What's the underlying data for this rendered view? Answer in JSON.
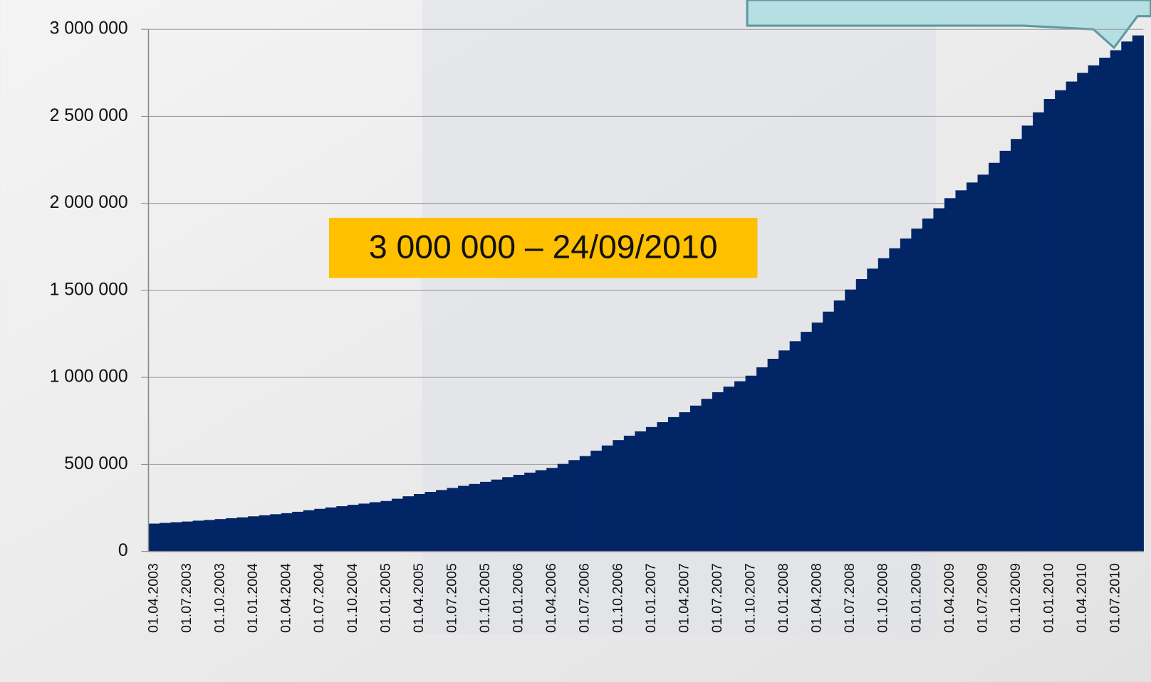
{
  "chart_data": {
    "type": "step-area",
    "annotation": "3 000 000 – 24/09/2010",
    "color": "#022566",
    "categories": [
      "01.04.2003",
      null,
      null,
      "01.07.2003",
      null,
      null,
      "01.10.2003",
      null,
      null,
      "01.01.2004",
      null,
      null,
      "01.04.2004",
      null,
      null,
      "01.07.2004",
      null,
      null,
      "01.10.2004",
      null,
      null,
      "01.01.2005",
      null,
      null,
      "01.04.2005",
      null,
      null,
      "01.07.2005",
      null,
      null,
      "01.10.2005",
      null,
      null,
      "01.01.2006",
      null,
      null,
      "01.04.2006",
      null,
      null,
      "01.07.2006",
      null,
      null,
      "01.10.2006",
      null,
      null,
      "01.01.2007",
      null,
      null,
      "01.04.2007",
      null,
      null,
      "01.07.2007",
      null,
      null,
      "01.10.2007",
      null,
      null,
      "01.01.2008",
      null,
      null,
      "01.04.2008",
      null,
      null,
      "01.07.2008",
      null,
      null,
      "01.10.2008",
      null,
      null,
      "01.01.2009",
      null,
      null,
      "01.04.2009",
      null,
      null,
      "01.07.2009",
      null,
      null,
      "01.10.2009",
      null,
      null,
      "01.01.2010",
      null,
      null,
      "01.04.2010",
      null,
      null,
      "01.07.2010",
      null,
      null
    ],
    "values": [
      160000,
      164000,
      168000,
      172000,
      177000,
      181000,
      186000,
      191000,
      196000,
      202000,
      208000,
      214000,
      220000,
      228000,
      237000,
      245000,
      253000,
      260000,
      268000,
      275000,
      283000,
      290000,
      303000,
      317000,
      330000,
      342000,
      353000,
      365000,
      377000,
      388000,
      400000,
      413000,
      427000,
      440000,
      453000,
      467000,
      480000,
      503000,
      525000,
      548000,
      579000,
      609000,
      640000,
      665000,
      690000,
      715000,
      743000,
      772000,
      800000,
      838000,
      877000,
      915000,
      947000,
      978000,
      1010000,
      1058000,
      1107000,
      1155000,
      1208000,
      1262000,
      1315000,
      1378000,
      1442000,
      1505000,
      1565000,
      1625000,
      1685000,
      1742000,
      1798000,
      1855000,
      1913000,
      1972000,
      2030000,
      2075000,
      2120000,
      2165000,
      2233000,
      2302000,
      2370000,
      2447000,
      2523000,
      2600000,
      2650000,
      2700000,
      2750000,
      2793000,
      2837000,
      2880000,
      2930000,
      2965000
    ],
    "ylim": [
      0,
      3000000
    ],
    "yticks": [
      0,
      {
        "value": 500000,
        "label": "500 000"
      },
      {
        "value": 1000000,
        "label": "1 000 000"
      },
      {
        "value": 1500000,
        "label": "1 500 000"
      },
      {
        "value": 2000000,
        "label": "2 000 000"
      },
      {
        "value": 2500000,
        "label": "2 500 000"
      },
      {
        "value": 3000000,
        "label": "3 000 000"
      }
    ],
    "grid": true
  }
}
